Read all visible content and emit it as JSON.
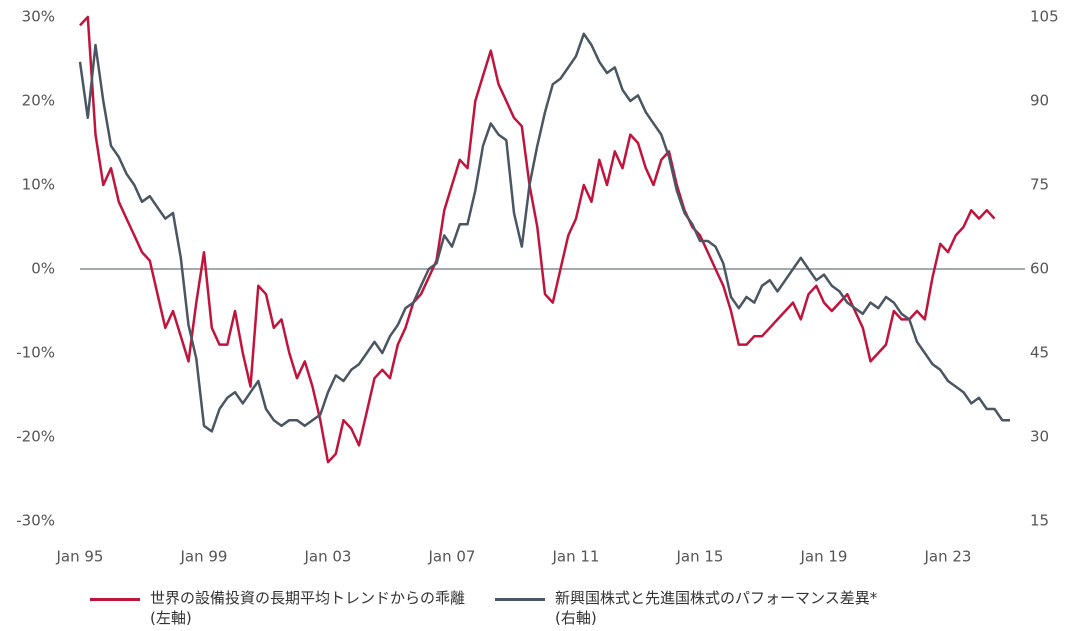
{
  "chart_data": {
    "type": "line",
    "categories": [
      "Jan 95",
      null,
      null,
      null,
      null,
      null,
      null,
      null,
      null,
      null,
      null,
      null,
      null,
      null,
      null,
      null,
      "Jan 99",
      null,
      null,
      null,
      null,
      null,
      null,
      null,
      null,
      null,
      null,
      null,
      null,
      null,
      null,
      null,
      "Jan 03",
      null,
      null,
      null,
      null,
      null,
      null,
      null,
      null,
      null,
      null,
      null,
      null,
      null,
      null,
      null,
      "Jan 07",
      null,
      null,
      null,
      null,
      null,
      null,
      null,
      null,
      null,
      null,
      null,
      null,
      null,
      null,
      null,
      "Jan 11",
      null,
      null,
      null,
      null,
      null,
      null,
      null,
      null,
      null,
      null,
      null,
      null,
      null,
      null,
      null,
      "Jan 15",
      null,
      null,
      null,
      null,
      null,
      null,
      null,
      null,
      null,
      null,
      null,
      null,
      null,
      null,
      null,
      "Jan 19",
      null,
      null,
      null,
      null,
      null,
      null,
      null,
      null,
      null,
      null,
      null,
      null,
      null,
      null,
      null,
      "Jan 23",
      null,
      null,
      null,
      null,
      null,
      null,
      null,
      null
    ],
    "series": [
      {
        "name": "世界の設備投資の長期平均トレンドからの乖離\n(左軸)",
        "color": "#c0143c",
        "axis": "y",
        "values": [
          29,
          30,
          16,
          10,
          12,
          8,
          6,
          4,
          2,
          1,
          -3,
          -7,
          -5,
          -8,
          -11,
          -4,
          2,
          -7,
          -9,
          -9,
          -5,
          -10,
          -14,
          -2,
          -3,
          -7,
          -6,
          -10,
          -13,
          -11,
          -14,
          -18,
          -23,
          -22,
          -18,
          -19,
          -21,
          -17,
          -13,
          -12,
          -13,
          -9,
          -7,
          -4,
          -3,
          -1,
          1,
          7,
          10,
          13,
          12,
          20,
          23,
          26,
          22,
          20,
          18,
          17,
          10,
          5,
          -3,
          -4,
          0,
          4,
          6,
          10,
          8,
          13,
          10,
          14,
          12,
          16,
          15,
          12,
          10,
          13,
          14,
          10,
          7,
          5,
          4,
          2,
          0,
          -2,
          -5,
          -9,
          -9,
          -8,
          -8,
          -7,
          -6,
          -5,
          -4,
          -6,
          -3,
          -2,
          -4,
          -5,
          -4,
          -3,
          -5,
          -7,
          -11,
          -10,
          -9,
          -5,
          -6,
          -6,
          -5,
          -6,
          -1,
          3,
          2,
          4,
          5,
          7,
          6,
          7,
          6,
          null,
          null
        ]
      },
      {
        "name": "新興国株式と先進国株式のパフォーマンス差異*\n(右軸)",
        "color": "#4a5663",
        "axis": "y2",
        "values": [
          97,
          87,
          100,
          90,
          82,
          80,
          77,
          75,
          72,
          73,
          71,
          69,
          70,
          62,
          50,
          44,
          32,
          31,
          35,
          37,
          38,
          36,
          38,
          40,
          35,
          33,
          32,
          33,
          33,
          32,
          33,
          34,
          38,
          41,
          40,
          42,
          43,
          45,
          47,
          45,
          48,
          50,
          53,
          54,
          57,
          60,
          61,
          66,
          64,
          68,
          68,
          74,
          82,
          86,
          84,
          83,
          70,
          64,
          75,
          82,
          88,
          93,
          94,
          96,
          98,
          102,
          100,
          97,
          95,
          96,
          92,
          90,
          91,
          88,
          86,
          84,
          80,
          74,
          70,
          68,
          65,
          65,
          64,
          61,
          55,
          53,
          55,
          54,
          57,
          58,
          56,
          58,
          60,
          62,
          60,
          58,
          59,
          57,
          56,
          54,
          53,
          52,
          54,
          53,
          55,
          54,
          52,
          51,
          47,
          45,
          43,
          42,
          40,
          39,
          38,
          36,
          37,
          35,
          35,
          33,
          33
        ]
      }
    ],
    "ylim": [
      -30,
      30
    ],
    "yticks": [
      {
        "value": 30,
        "label": "30%"
      },
      {
        "value": 20,
        "label": "20%"
      },
      {
        "value": 10,
        "label": "10%"
      },
      {
        "value": 0,
        "label": "0%"
      },
      {
        "value": -10,
        "label": "-10%"
      },
      {
        "value": -20,
        "label": "-20%"
      },
      {
        "value": -30,
        "label": "-30%"
      }
    ],
    "y2lim": [
      15,
      105
    ],
    "y2ticks": [
      105,
      90,
      75,
      60,
      45,
      30,
      15
    ],
    "grid": false,
    "zero_line": true,
    "legend": "bottom"
  }
}
